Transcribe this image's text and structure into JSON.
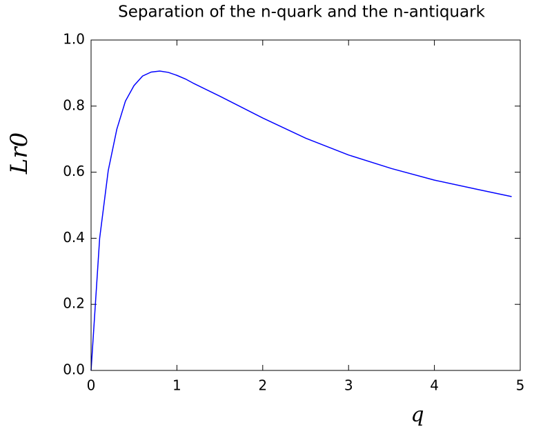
{
  "chart_data": {
    "type": "line",
    "title": "Separation of the n-quark and the n-antiquark",
    "x_label": "q",
    "y_label": "Lr0",
    "x": [
      0,
      0.1,
      0.2,
      0.3,
      0.4,
      0.5,
      0.6,
      0.7,
      0.8,
      0.9,
      1.0,
      1.1,
      1.2,
      1.5,
      2.0,
      2.5,
      3.0,
      3.5,
      4.0,
      4.5,
      4.9
    ],
    "series": [
      {
        "color": "#0000ff",
        "values": [
          0,
          0.4,
          0.605,
          0.73,
          0.815,
          0.862,
          0.891,
          0.903,
          0.906,
          0.902,
          0.893,
          0.882,
          0.868,
          0.83,
          0.764,
          0.703,
          0.652,
          0.611,
          0.576,
          0.548,
          0.526
        ]
      }
    ],
    "xlim": [
      0,
      5
    ],
    "ylim": [
      0,
      1
    ],
    "xticks": [
      0,
      1,
      2,
      3,
      4,
      5
    ],
    "yticks": [
      {
        "value": 0,
        "label": "0.0"
      },
      0.2,
      0.4,
      0.6,
      0.8,
      {
        "value": 1,
        "label": "1.0"
      }
    ],
    "grid": false
  }
}
